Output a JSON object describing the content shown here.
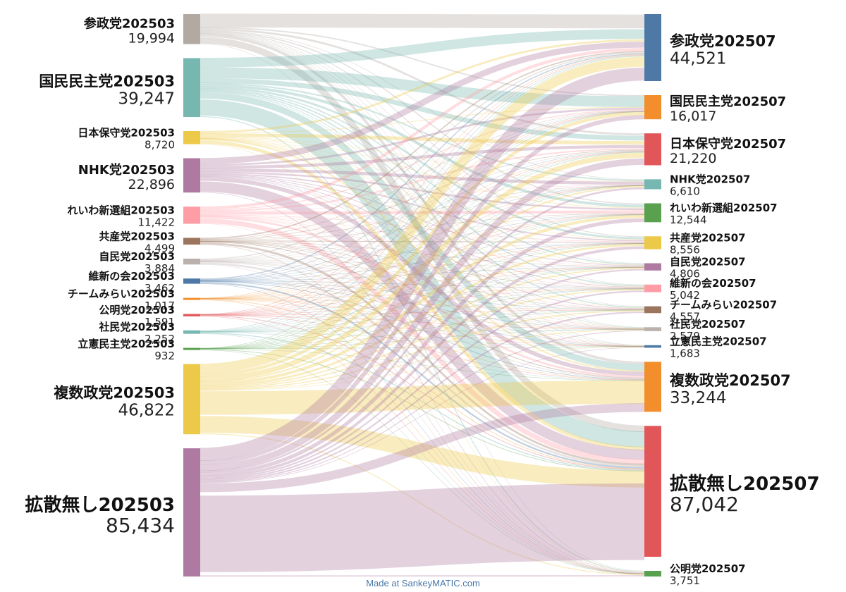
{
  "credit": "Made at SankeyMATIC.com",
  "left_nodes": [
    {
      "name": "参政党202503",
      "value": "19,994",
      "color": "#b2aaa2"
    },
    {
      "name": "国民民主党202503",
      "value": "39,247",
      "color": "#76b7b0"
    },
    {
      "name": "日本保守党202503",
      "value": "8,720",
      "color": "#edc949"
    },
    {
      "name": "NHK党202503",
      "value": "22,896",
      "color": "#af7aa1"
    },
    {
      "name": "れいわ新選組202503",
      "value": "11,422",
      "color": "#ff9da7"
    },
    {
      "name": "共産党202503",
      "value": "4,499",
      "color": "#9c755f"
    },
    {
      "name": "自民党202503",
      "value": "3,884",
      "color": "#bab0ac"
    },
    {
      "name": "維新の会202503",
      "value": "3,462",
      "color": "#4e79a7"
    },
    {
      "name": "チームみらい202503",
      "value": "1,017",
      "color": "#f28e2c"
    },
    {
      "name": "公明党202503",
      "value": "1,591",
      "color": "#e15759"
    },
    {
      "name": "社民党202503",
      "value": "2,252",
      "color": "#76b7b2"
    },
    {
      "name": "立憲民主党202503",
      "value": "932",
      "color": "#59a14f"
    },
    {
      "name": "複数政党202503",
      "value": "46,822",
      "color": "#edc949"
    },
    {
      "name": "拡散無し202503",
      "value": "85,434",
      "color": "#af7aa1"
    }
  ],
  "right_nodes": [
    {
      "name": "参政党202507",
      "value": "44,521",
      "color": "#4e79a7"
    },
    {
      "name": "国民民主党202507",
      "value": "16,017",
      "color": "#f28e2c"
    },
    {
      "name": "日本保守党202507",
      "value": "21,220",
      "color": "#e15759"
    },
    {
      "name": "NHK党202507",
      "value": "6,610",
      "color": "#76b7b2"
    },
    {
      "name": "れいわ新選組202507",
      "value": "12,544",
      "color": "#59a14f"
    },
    {
      "name": "共産党202507",
      "value": "8,556",
      "color": "#edc949"
    },
    {
      "name": "自民党202507",
      "value": "4,806",
      "color": "#af7aa1"
    },
    {
      "name": "維新の会202507",
      "value": "5,042",
      "color": "#ff9da7"
    },
    {
      "name": "チームみらい202507",
      "value": "4,557",
      "color": "#9c755f"
    },
    {
      "name": "社民党202507",
      "value": "2,579",
      "color": "#bab0ac"
    },
    {
      "name": "立憲民主党202507",
      "value": "1,683",
      "color": "#4e79a7"
    },
    {
      "name": "複数政党202507",
      "value": "33,244",
      "color": "#f28e2c"
    },
    {
      "name": "拡散無し202507",
      "value": "87,042",
      "color": "#e15759"
    },
    {
      "name": "公明党202507",
      "value": "3,751",
      "color": "#59a14f"
    }
  ]
}
